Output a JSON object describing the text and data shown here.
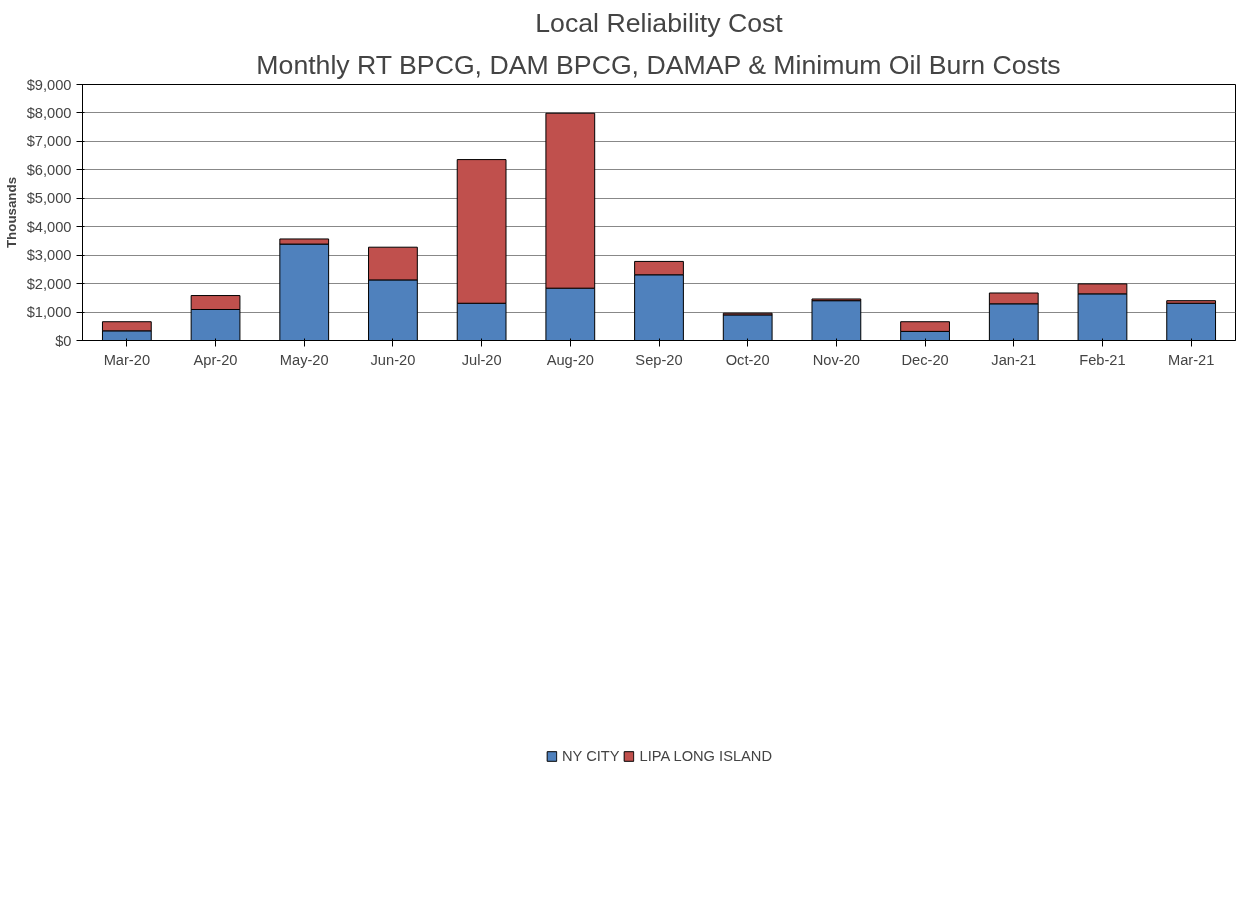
{
  "chart_data": {
    "type": "bar",
    "title": "Local Reliability Cost",
    "subtitle": "Monthly RT BPCG, DAM BPCG, DAMAP & Minimum Oil Burn Costs",
    "ylabel": "Thousands",
    "stacked": true,
    "categories": [
      "Mar-20",
      "Apr-20",
      "May-20",
      "Jun-20",
      "Jul-20",
      "Aug-20",
      "Sep-20",
      "Oct-20",
      "Nov-20",
      "Dec-20",
      "Jan-21",
      "Feb-21",
      "Mar-21"
    ],
    "series": [
      {
        "name": "NY CITY",
        "color": "#4f81bd",
        "values": [
          340,
          1090,
          3390,
          2130,
          1310,
          1840,
          2310,
          900,
          1400,
          320,
          1290,
          1640,
          1310
        ]
      },
      {
        "name": "LIPA LONG ISLAND",
        "color": "#c0504d",
        "values": [
          320,
          490,
          180,
          1150,
          5050,
          6150,
          470,
          60,
          60,
          340,
          380,
          350,
          90
        ]
      }
    ],
    "ylim": [
      0,
      9000
    ],
    "yticks": [
      {
        "value": 0,
        "label": "$0"
      },
      {
        "value": 1000,
        "label": "$1,000"
      },
      {
        "value": 2000,
        "label": "$2,000"
      },
      {
        "value": 3000,
        "label": "$3,000"
      },
      {
        "value": 4000,
        "label": "$4,000"
      },
      {
        "value": 5000,
        "label": "$5,000"
      },
      {
        "value": 6000,
        "label": "$6,000"
      },
      {
        "value": 7000,
        "label": "$7,000"
      },
      {
        "value": 8000,
        "label": "$8,000"
      },
      {
        "value": 9000,
        "label": "$9,000"
      }
    ],
    "grid": "y",
    "legend": "bottom"
  }
}
